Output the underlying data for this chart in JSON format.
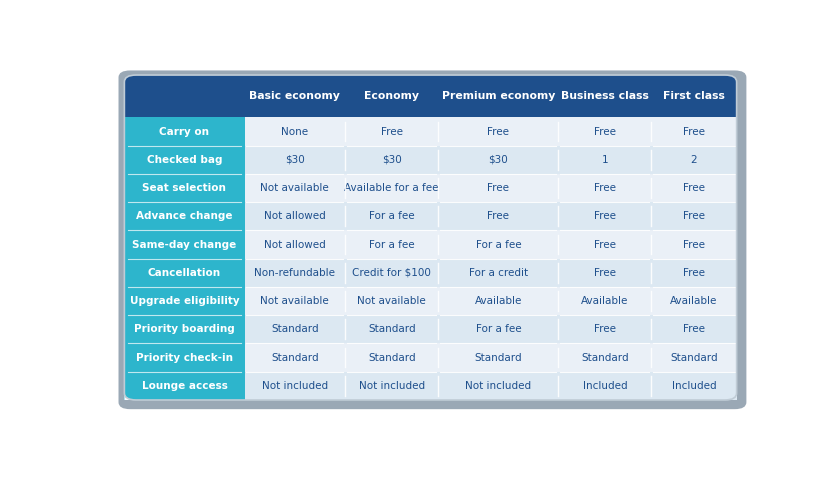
{
  "header_bg": "#1e4f8c",
  "header_text_color": "#ffffff",
  "row_label_bg": "#2db5cc",
  "row_label_text_color": "#ffffff",
  "cell_bg_odd": "#eaf0f7",
  "cell_bg_even": "#dce8f2",
  "cell_text_color": "#1e4f8c",
  "outer_bg": "#ffffff",
  "shadow_color": "#b0b8c0",
  "table_border_color": "#8090a0",
  "columns": [
    "",
    "Basic economy",
    "Economy",
    "Premium economy",
    "Business class",
    "First class"
  ],
  "rows": [
    [
      "Carry on",
      "None",
      "Free",
      "Free",
      "Free",
      "Free"
    ],
    [
      "Checked bag",
      "$30",
      "$30",
      "$30",
      "1",
      "2"
    ],
    [
      "Seat selection",
      "Not available",
      "Available for a fee",
      "Free",
      "Free",
      "Free"
    ],
    [
      "Advance change",
      "Not allowed",
      "For a fee",
      "Free",
      "Free",
      "Free"
    ],
    [
      "Same-day change",
      "Not allowed",
      "For a fee",
      "For a fee",
      "Free",
      "Free"
    ],
    [
      "Cancellation",
      "Non-refundable",
      "Credit for $100",
      "For a credit",
      "Free",
      "Free"
    ],
    [
      "Upgrade eligibility",
      "Not available",
      "Not available",
      "Available",
      "Available",
      "Available"
    ],
    [
      "Priority boarding",
      "Standard",
      "Standard",
      "For a fee",
      "Free",
      "Free"
    ],
    [
      "Priority check-in",
      "Standard",
      "Standard",
      "Standard",
      "Standard",
      "Standard"
    ],
    [
      "Lounge access",
      "Not included",
      "Not included",
      "Not included",
      "Included",
      "Included"
    ]
  ],
  "fig_width": 8.4,
  "fig_height": 4.97,
  "dpi": 100
}
